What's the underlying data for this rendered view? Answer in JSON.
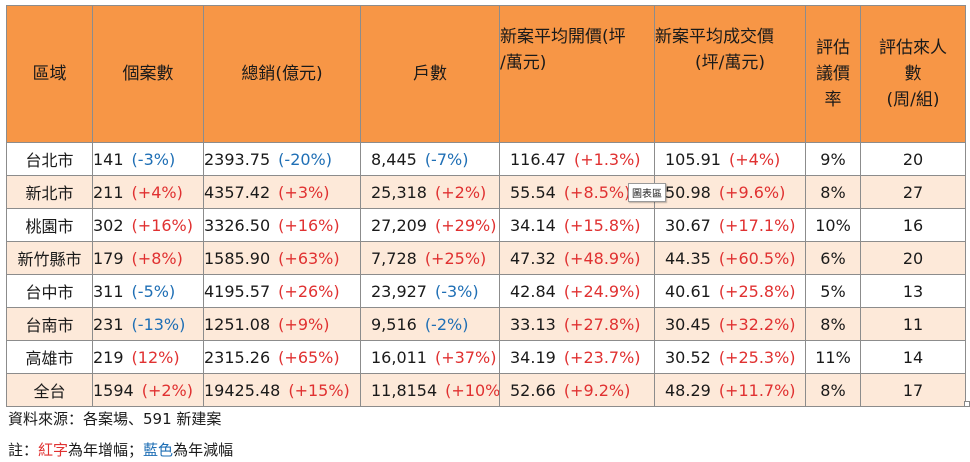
{
  "headers": [
    "區域",
    "個案數",
    "總銷(億元)",
    "戶數",
    "新案平均開價(坪/萬元)",
    "新案平均成交價(坪/萬元)",
    "評估議價率",
    "評估來人數(周/組)"
  ],
  "header_lines": {
    "open_price": [
      "新案平均開價(坪",
      "/萬元)"
    ],
    "deal_price": [
      "新案平均成交價",
      "(坪/萬元)"
    ],
    "bargain": [
      "評估",
      "議價",
      "率"
    ],
    "visitors": [
      "評估來人",
      "數",
      "(周/組)"
    ]
  },
  "rows": [
    {
      "region": "台北市",
      "cases": "141",
      "cases_chg": "(-3%)",
      "cases_dir": "down",
      "sales": "2393.75",
      "sales_chg": "(-20%)",
      "sales_dir": "down",
      "units": "8,445",
      "units_chg": "(-7%)",
      "units_dir": "down",
      "open": "116.47",
      "open_chg": "(+1.3%)",
      "open_dir": "up",
      "deal": "105.91",
      "deal_chg": "(+4%)",
      "deal_dir": "up",
      "bargain": "9%",
      "visitors": "20"
    },
    {
      "region": "新北市",
      "cases": "211",
      "cases_chg": "(+4%)",
      "cases_dir": "up",
      "sales": "4357.42",
      "sales_chg": "(+3%)",
      "sales_dir": "up",
      "units": "25,318",
      "units_chg": "(+2%)",
      "units_dir": "up",
      "open": "55.54",
      "open_chg": "(+8.5%)",
      "open_dir": "up",
      "deal": "50.98",
      "deal_chg": "(+9.6%)",
      "deal_dir": "up",
      "bargain": "8%",
      "visitors": "27"
    },
    {
      "region": "桃園市",
      "cases": "302",
      "cases_chg": "(+16%)",
      "cases_dir": "up",
      "sales": "3326.50",
      "sales_chg": "(+16%)",
      "sales_dir": "up",
      "units": "27,209",
      "units_chg": "(+29%)",
      "units_dir": "up",
      "open": "34.14",
      "open_chg": "(+15.8%)",
      "open_dir": "up",
      "deal": "30.67",
      "deal_chg": "(+17.1%)",
      "deal_dir": "up",
      "bargain": "10%",
      "visitors": "16"
    },
    {
      "region": "新竹縣市",
      "cases": "179",
      "cases_chg": "(+8%)",
      "cases_dir": "up",
      "sales": "1585.90",
      "sales_chg": "(+63%)",
      "sales_dir": "up",
      "units": "7,728",
      "units_chg": "(+25%)",
      "units_dir": "up",
      "open": "47.32",
      "open_chg": "(+48.9%)",
      "open_dir": "up",
      "deal": "44.35",
      "deal_chg": "(+60.5%)",
      "deal_dir": "up",
      "bargain": "6%",
      "visitors": "20"
    },
    {
      "region": "台中市",
      "cases": "311",
      "cases_chg": "(-5%)",
      "cases_dir": "down",
      "sales": "4195.57",
      "sales_chg": "(+26%)",
      "sales_dir": "up",
      "units": "23,927",
      "units_chg": "(-3%)",
      "units_dir": "down",
      "open": "42.84",
      "open_chg": "(+24.9%)",
      "open_dir": "up",
      "deal": "40.61",
      "deal_chg": "(+25.8%)",
      "deal_dir": "up",
      "bargain": "5%",
      "visitors": "13"
    },
    {
      "region": "台南市",
      "cases": "231",
      "cases_chg": "(-13%)",
      "cases_dir": "down",
      "sales": "1251.08",
      "sales_chg": "(+9%)",
      "sales_dir": "up",
      "units": "9,516",
      "units_chg": "(-2%)",
      "units_dir": "down",
      "open": "33.13",
      "open_chg": "(+27.8%)",
      "open_dir": "up",
      "deal": "30.45",
      "deal_chg": "(+32.2%)",
      "deal_dir": "up",
      "bargain": "8%",
      "visitors": "11"
    },
    {
      "region": "高雄市",
      "cases": "219",
      "cases_chg": "(12%)",
      "cases_dir": "up",
      "sales": "2315.26",
      "sales_chg": "(+65%)",
      "sales_dir": "up",
      "units": "16,011",
      "units_chg": "(+37%)",
      "units_dir": "up",
      "open": "34.19",
      "open_chg": "(+23.7%)",
      "open_dir": "up",
      "deal": "30.52",
      "deal_chg": "(+25.3%)",
      "deal_dir": "up",
      "bargain": "11%",
      "visitors": "14"
    },
    {
      "region": "全台",
      "cases": "1594",
      "cases_chg": "(+2%)",
      "cases_dir": "up",
      "sales": "19425.48",
      "sales_chg": "(+15%)",
      "sales_dir": "up",
      "units": "11,8154",
      "units_chg": "(+10%)",
      "units_dir": "up",
      "open": "52.66",
      "open_chg": "(+9.2%)",
      "open_dir": "up",
      "deal": "48.29",
      "deal_chg": "(+11.7%)",
      "deal_dir": "up",
      "bargain": "8%",
      "visitors": "17"
    }
  ],
  "tooltip": "圖表區",
  "footer": {
    "source": "資料來源：各案場、591 新建案",
    "note_prefix": "註：",
    "note_red": "紅字",
    "note_mid": "為年增幅；",
    "note_blue": "藍色",
    "note_end": "為年減幅"
  },
  "colors": {
    "header_bg": "#f79646",
    "stripe_bg": "#fde9d9",
    "increase": "#e03131",
    "decrease": "#1f6fb5"
  }
}
